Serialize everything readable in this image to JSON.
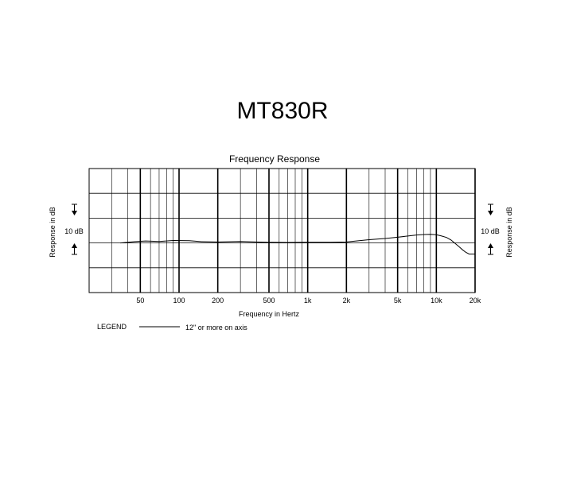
{
  "model_title": "MT830R",
  "chart_data": {
    "type": "line",
    "title": "Frequency Response",
    "xlabel": "Frequency in Hertz",
    "ylabel": "Response in dB",
    "x_scale": "log",
    "xlim": [
      20,
      20000
    ],
    "x_ticks": [
      {
        "value": 50,
        "label": "50"
      },
      {
        "value": 100,
        "label": "100"
      },
      {
        "value": 200,
        "label": "200"
      },
      {
        "value": 500,
        "label": "500"
      },
      {
        "value": 1000,
        "label": "1k"
      },
      {
        "value": 2000,
        "label": "2k"
      },
      {
        "value": 5000,
        "label": "5k"
      },
      {
        "value": 10000,
        "label": "10k"
      },
      {
        "value": 20000,
        "label": "20k"
      }
    ],
    "major_gridlines_hz": [
      50,
      100,
      200,
      500,
      1000,
      2000,
      5000,
      10000,
      20000
    ],
    "minor_gridlines_hz": [
      30,
      40,
      60,
      70,
      80,
      90,
      300,
      400,
      600,
      700,
      800,
      900,
      3000,
      4000,
      6000,
      7000,
      8000,
      9000
    ],
    "ylim": [
      -20,
      30
    ],
    "y_grid_step_db": 10,
    "scale_label": "10 dB",
    "grid": true,
    "series": [
      {
        "legend_label": "12\" or more on axis",
        "color": "#000000",
        "x": [
          35,
          45,
          55,
          70,
          90,
          120,
          150,
          200,
          300,
          400,
          500,
          700,
          1000,
          1500,
          2000,
          3000,
          4000,
          5000,
          6000,
          7000,
          8000,
          9000,
          10000,
          11000,
          12000,
          13000,
          14000,
          15000,
          16000,
          17000,
          18000,
          20000
        ],
        "y": [
          0.0,
          0.5,
          0.8,
          0.6,
          1.0,
          0.9,
          0.5,
          0.4,
          0.6,
          0.4,
          0.3,
          0.2,
          0.3,
          0.3,
          0.4,
          1.3,
          1.8,
          2.3,
          2.8,
          3.2,
          3.4,
          3.5,
          3.3,
          2.8,
          2.2,
          1.2,
          -0.2,
          -1.5,
          -2.8,
          -3.8,
          -4.5,
          -4.5
        ]
      }
    ],
    "legend": {
      "title": "LEGEND",
      "entry": "12\" or more on axis"
    }
  }
}
